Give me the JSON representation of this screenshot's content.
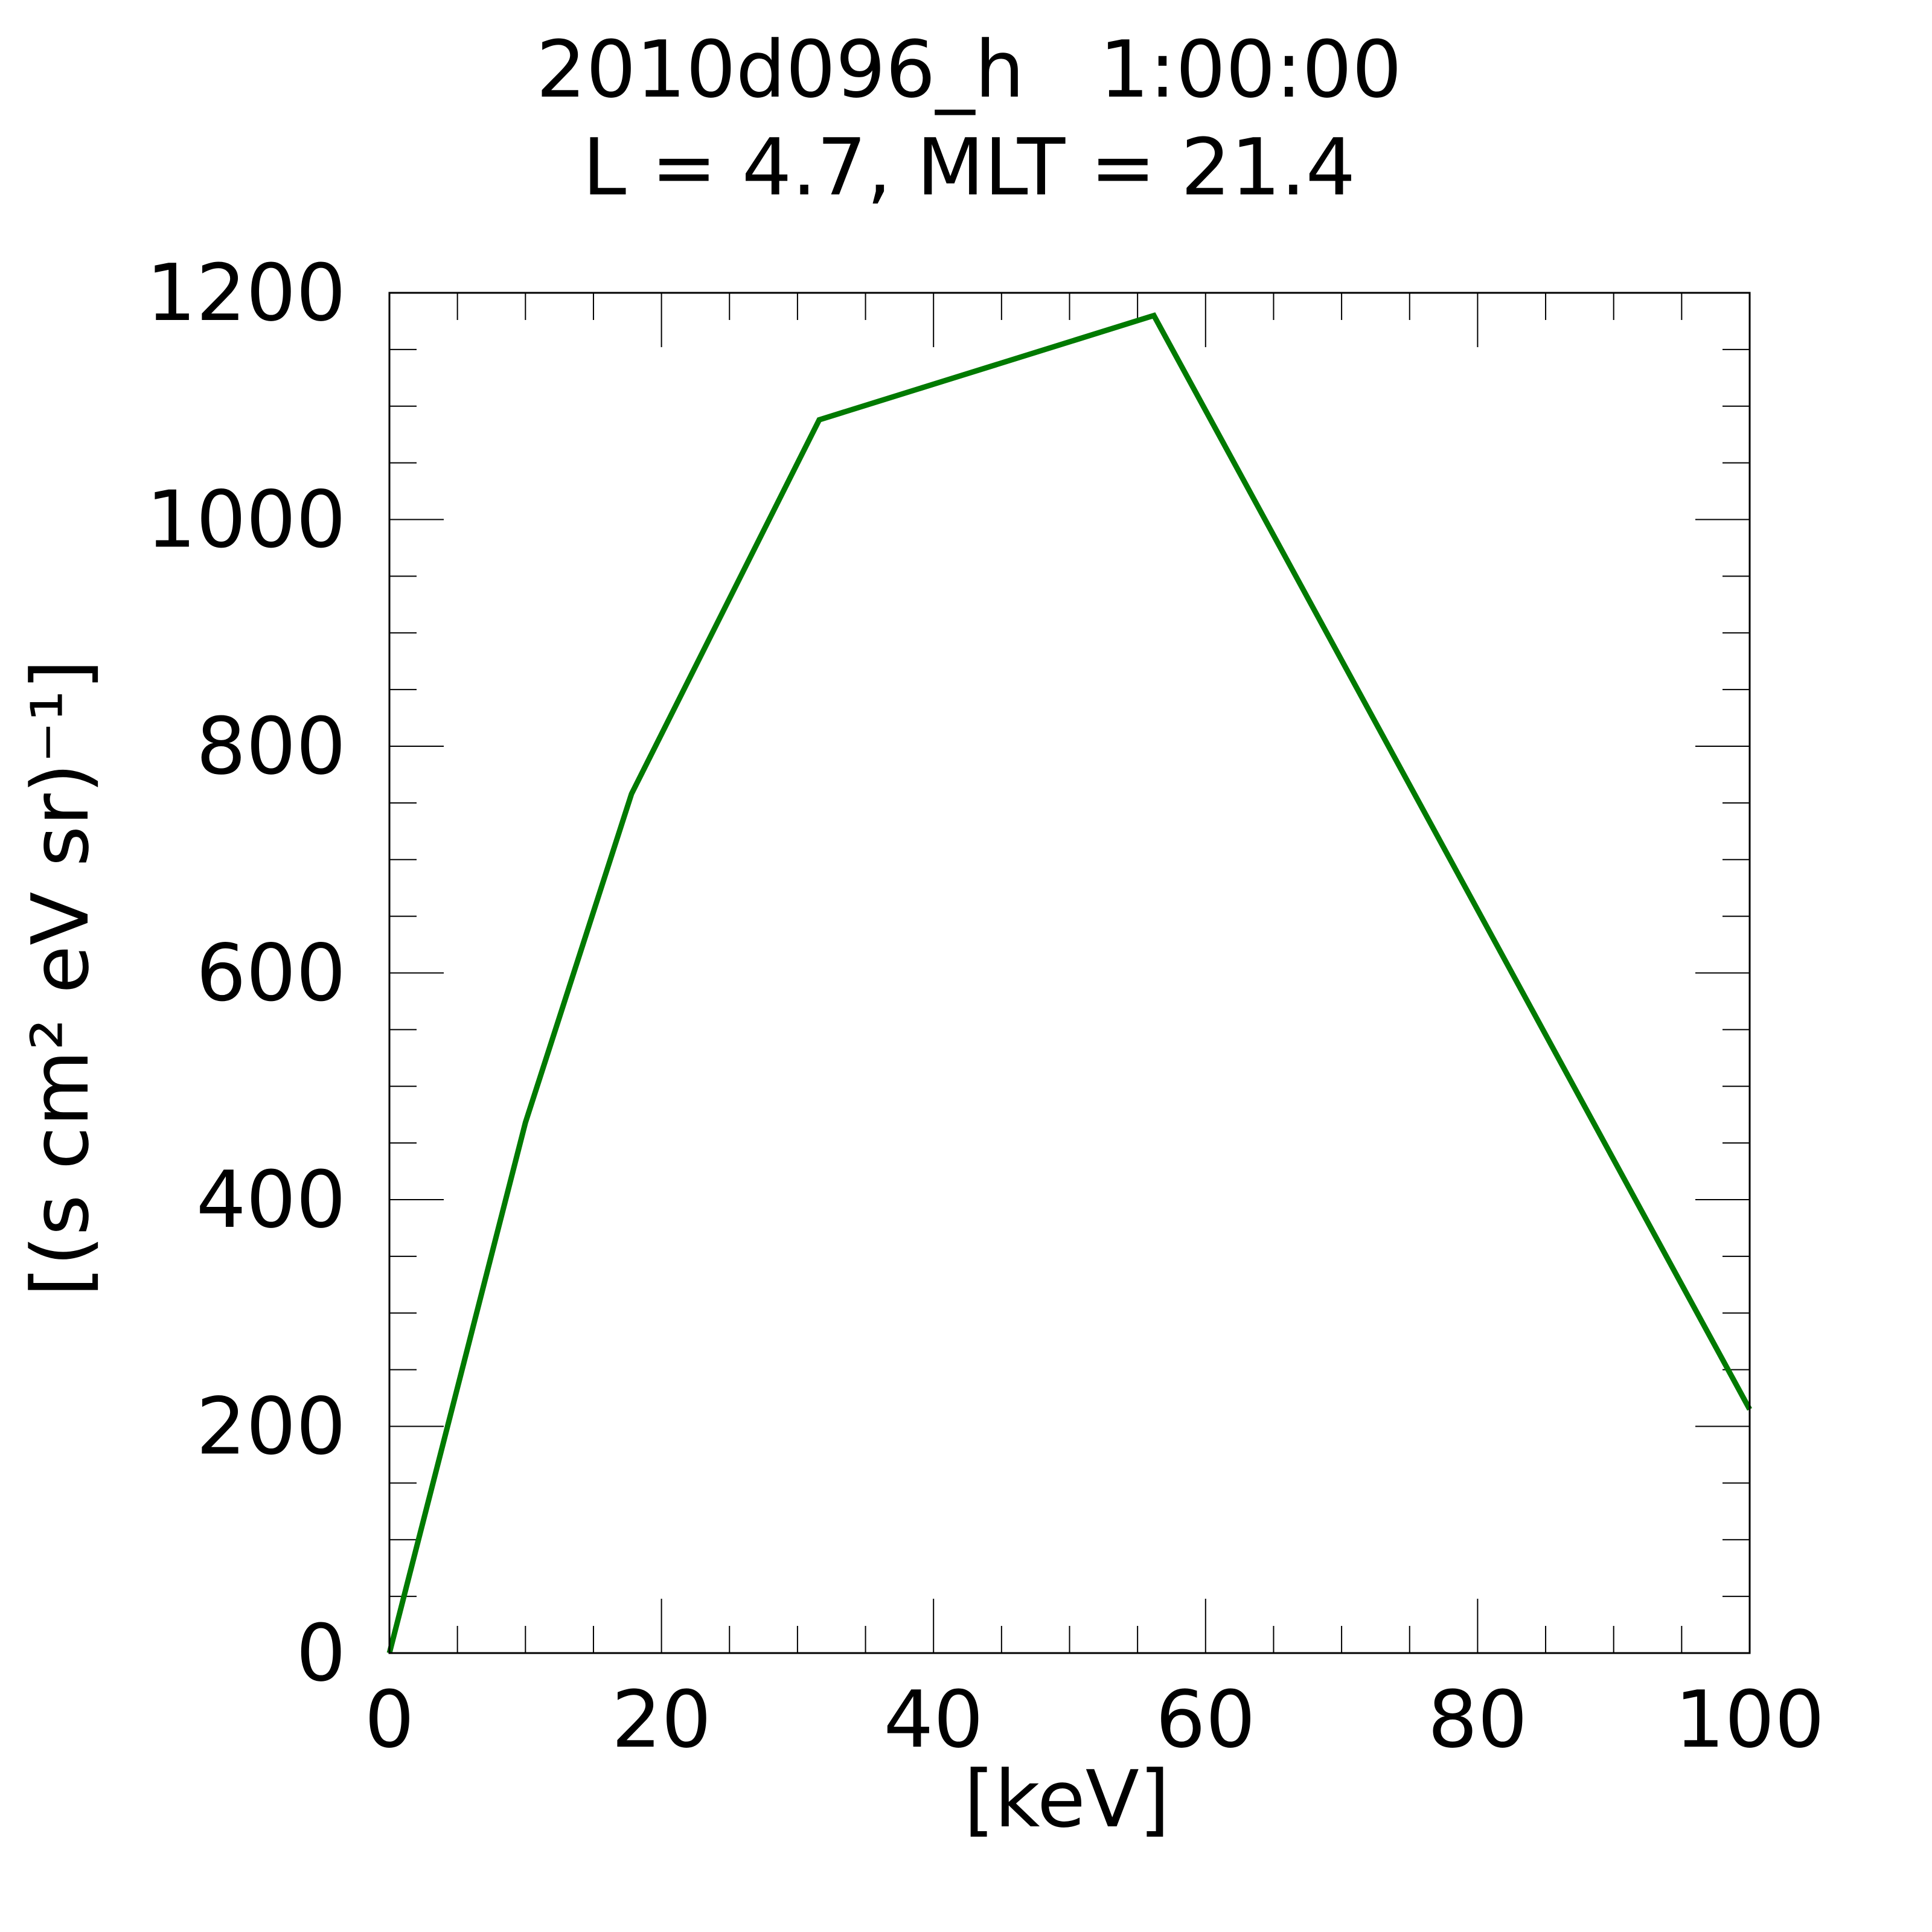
{
  "chart_data": {
    "type": "line",
    "title": "2010d096_h   1:00:00",
    "subtitle": "L = 4.7, MLT = 21.4",
    "xlabel": "[keV]",
    "ylabel": "[(s cm² eV sr)⁻¹]",
    "xlim": [
      0,
      100
    ],
    "ylim": [
      0,
      1200
    ],
    "x_ticks": [
      0,
      20,
      40,
      60,
      80,
      100
    ],
    "y_ticks": [
      0,
      200,
      400,
      600,
      800,
      1000,
      1200
    ],
    "grid": false,
    "legend": "none",
    "series": [
      {
        "color": "#007a00",
        "x": [
          0,
          10,
          17.8,
          31.6,
          56.2,
          100
        ],
        "y": [
          0,
          468,
          758,
          1088,
          1180,
          215
        ]
      }
    ]
  }
}
